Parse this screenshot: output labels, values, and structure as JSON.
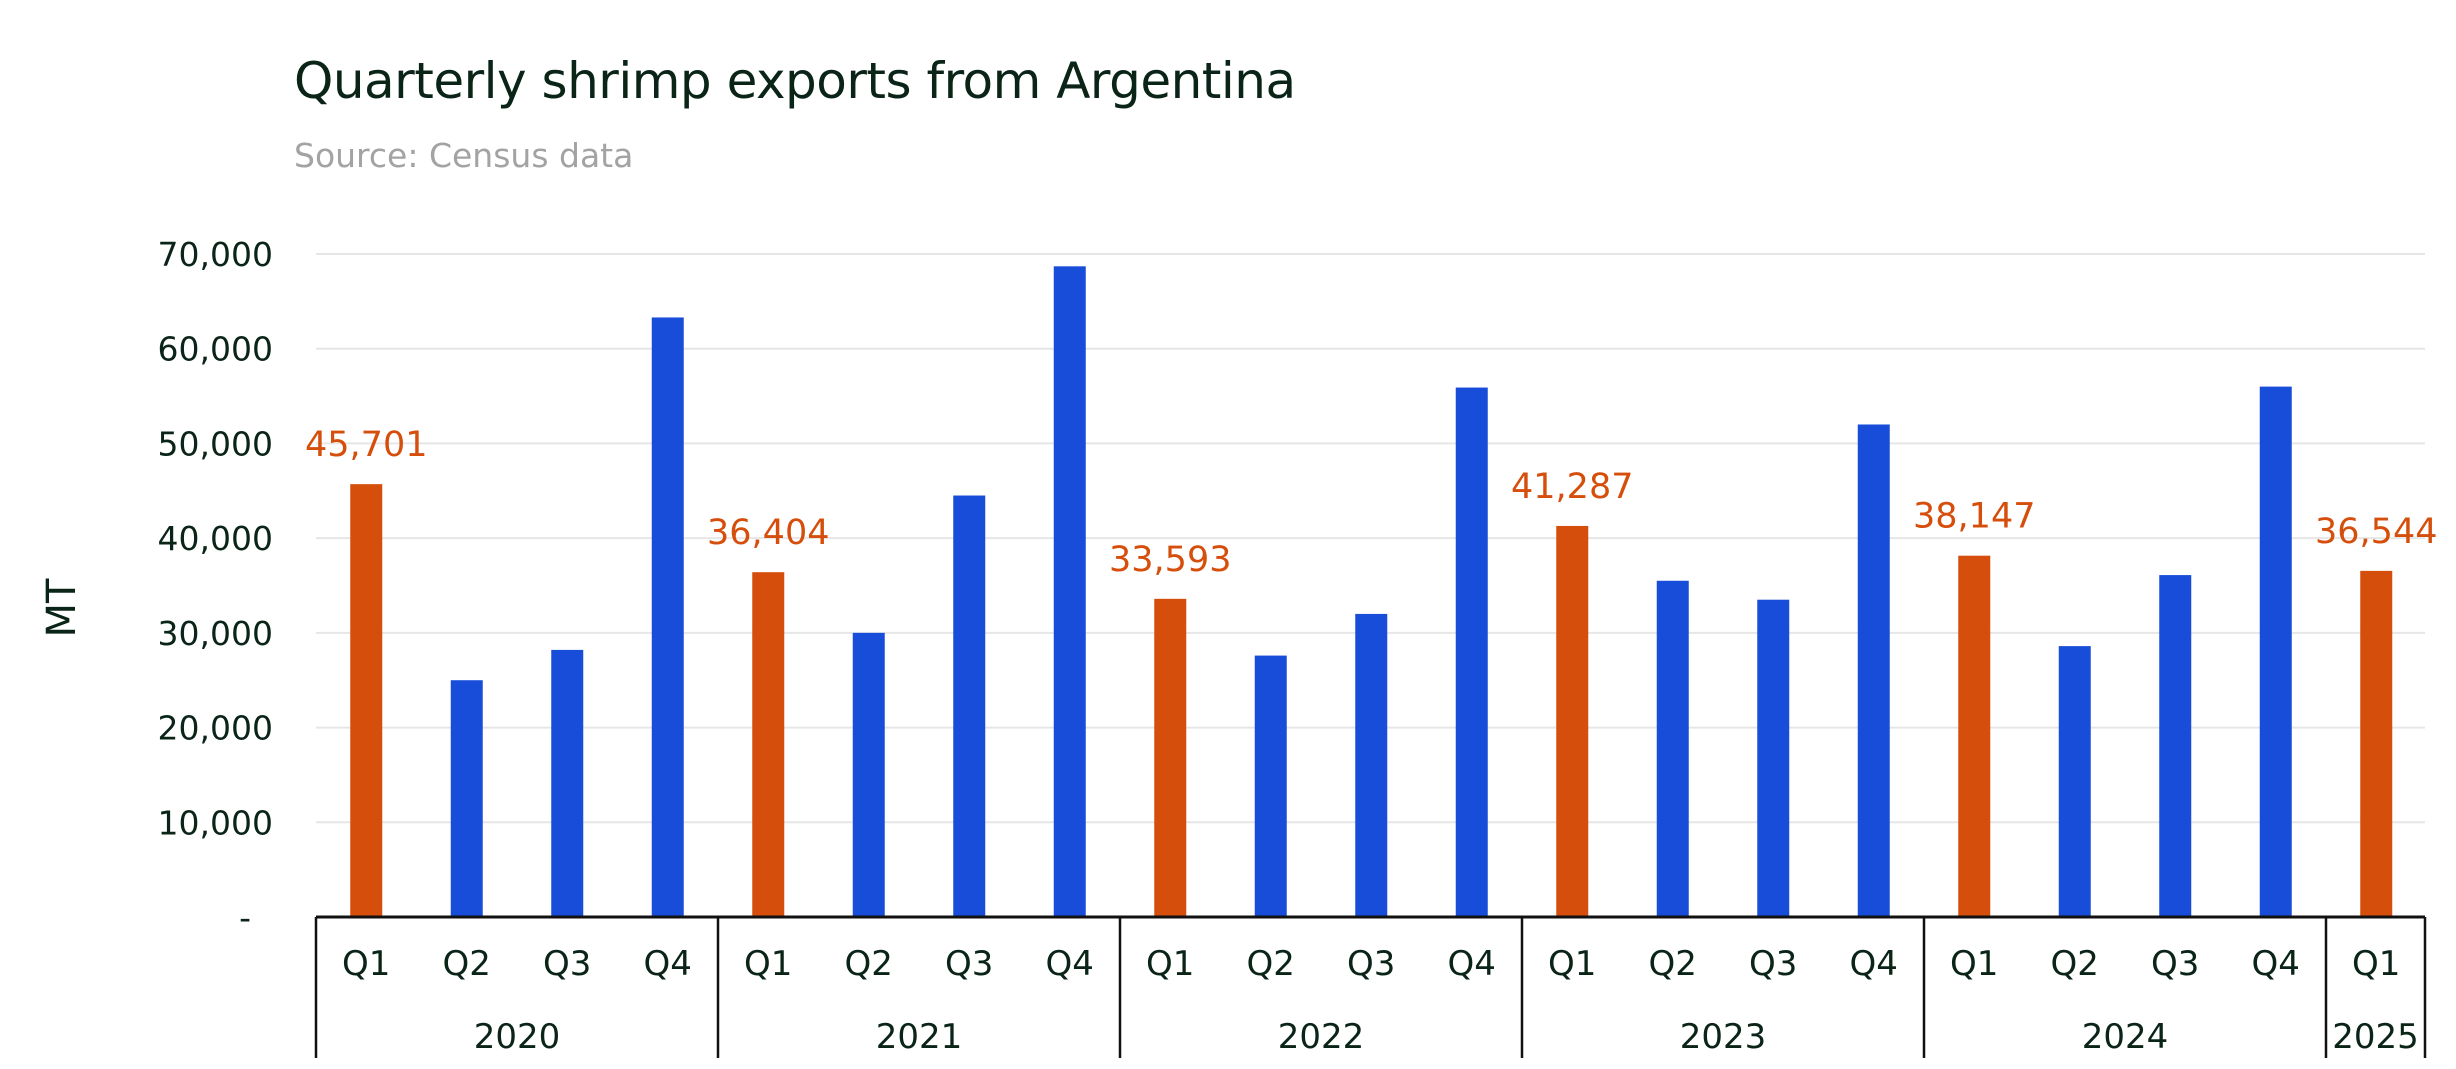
{
  "chart_data": {
    "type": "bar",
    "title": "Quarterly shrimp exports from Argentina",
    "subtitle": "Source: Census data",
    "ylabel": "MT",
    "ylim": [
      0,
      70000
    ],
    "yticks": [
      0,
      10000,
      20000,
      30000,
      40000,
      50000,
      60000,
      70000
    ],
    "ytick_labels": [
      "-",
      "10,000",
      "20,000",
      "30,000",
      "40,000",
      "50,000",
      "60,000",
      "70,000"
    ],
    "grid": true,
    "colors": {
      "highlight": "#d64e0b",
      "default": "#184dd9",
      "grid": "#e6e6e6",
      "axis": "#111111"
    },
    "groups": [
      {
        "year": "2020",
        "quarters": [
          {
            "q": "Q1",
            "value": 45701,
            "label": "45,701",
            "highlight": true
          },
          {
            "q": "Q2",
            "value": 25000
          },
          {
            "q": "Q3",
            "value": 28200
          },
          {
            "q": "Q4",
            "value": 63300
          }
        ]
      },
      {
        "year": "2021",
        "quarters": [
          {
            "q": "Q1",
            "value": 36404,
            "label": "36,404",
            "highlight": true
          },
          {
            "q": "Q2",
            "value": 30000
          },
          {
            "q": "Q3",
            "value": 44500
          },
          {
            "q": "Q4",
            "value": 68700
          }
        ]
      },
      {
        "year": "2022",
        "quarters": [
          {
            "q": "Q1",
            "value": 33593,
            "label": "33,593",
            "highlight": true
          },
          {
            "q": "Q2",
            "value": 27600
          },
          {
            "q": "Q3",
            "value": 32000
          },
          {
            "q": "Q4",
            "value": 55900
          }
        ]
      },
      {
        "year": "2023",
        "quarters": [
          {
            "q": "Q1",
            "value": 41287,
            "label": "41,287",
            "highlight": true
          },
          {
            "q": "Q2",
            "value": 35500
          },
          {
            "q": "Q3",
            "value": 33500
          },
          {
            "q": "Q4",
            "value": 52000
          }
        ]
      },
      {
        "year": "2024",
        "quarters": [
          {
            "q": "Q1",
            "value": 38147,
            "label": "38,147",
            "highlight": true
          },
          {
            "q": "Q2",
            "value": 28600
          },
          {
            "q": "Q3",
            "value": 36100
          },
          {
            "q": "Q4",
            "value": 56000
          }
        ]
      },
      {
        "year": "2025",
        "quarters": [
          {
            "q": "Q1",
            "value": 36544,
            "label": "36,544",
            "highlight": true
          }
        ]
      }
    ]
  }
}
